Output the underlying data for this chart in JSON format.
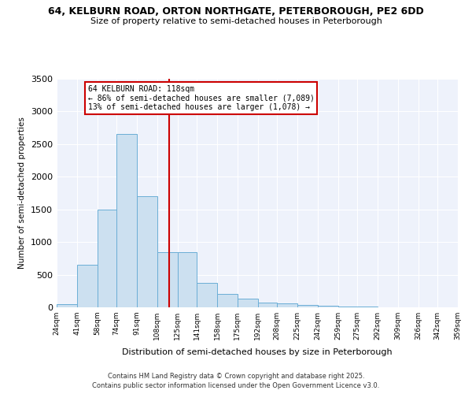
{
  "title_line1": "64, KELBURN ROAD, ORTON NORTHGATE, PETERBOROUGH, PE2 6DD",
  "title_line2": "Size of property relative to semi-detached houses in Peterborough",
  "xlabel": "Distribution of semi-detached houses by size in Peterborough",
  "ylabel": "Number of semi-detached properties",
  "property_label": "64 KELBURN ROAD: 118sqm",
  "pct_smaller": 86,
  "pct_larger": 13,
  "n_smaller": 7089,
  "n_larger": 1078,
  "bin_edges": [
    24,
    41,
    58,
    74,
    91,
    108,
    125,
    141,
    158,
    175,
    192,
    208,
    225,
    242,
    259,
    275,
    292,
    309,
    326,
    342,
    359
  ],
  "bin_counts": [
    50,
    650,
    1500,
    2650,
    1700,
    850,
    850,
    375,
    200,
    130,
    75,
    55,
    40,
    30,
    15,
    8,
    5,
    3,
    2,
    1
  ],
  "bar_color": "#cce0f0",
  "bar_edge_color": "#6baed6",
  "vline_color": "#cc0000",
  "vline_x": 118,
  "annotation_box_color": "#cc0000",
  "background_color": "#eef2fb",
  "ylim": [
    0,
    3500
  ],
  "yticks": [
    0,
    500,
    1000,
    1500,
    2000,
    2500,
    3000,
    3500
  ],
  "footer_line1": "Contains HM Land Registry data © Crown copyright and database right 2025.",
  "footer_line2": "Contains public sector information licensed under the Open Government Licence v3.0."
}
